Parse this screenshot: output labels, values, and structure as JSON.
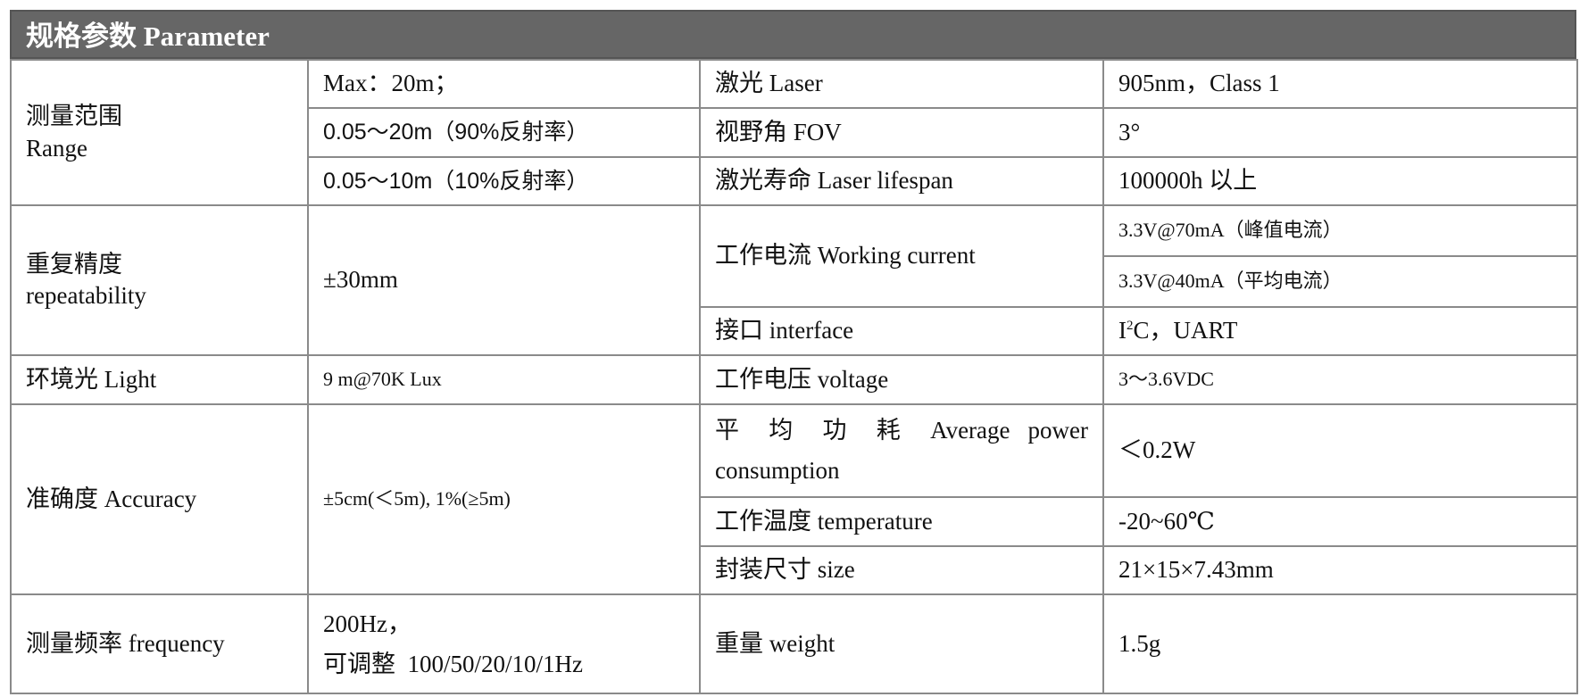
{
  "title": "规格参数 Parameter",
  "rows": {
    "range_label": "测量范围",
    "range_label_en": "Range",
    "range_max": "Max：20m；",
    "range_90": "0.05～20m（90%反射率）",
    "range_10": "0.05～10m（10%反射率）",
    "laser_label": "激光 Laser",
    "laser_value": "905nm，Class 1",
    "fov_label": "视野角 FOV",
    "fov_value": "3°",
    "lifespan_label": "激光寿命 Laser lifespan",
    "lifespan_value": "100000h 以上",
    "repeat_label": "重复精度",
    "repeat_label_en": "repeatability",
    "repeat_value": "±30mm",
    "current_label": "工作电流 Working current",
    "current_peak": "3.3V@70mA（峰值电流）",
    "current_avg": "3.3V@40mA（平均电流）",
    "interface_label": "接口 interface",
    "interface_value_pre": "I",
    "interface_value_sup": "2",
    "interface_value_post": "C，UART",
    "light_label": "环境光 Light",
    "light_value": "9 m@70K Lux",
    "voltage_label": "工作电压 voltage",
    "voltage_value": "3～3.6VDC",
    "accuracy_label": "准确度 Accuracy",
    "accuracy_value": "±5cm(＜5m), 1%(≥5m)",
    "power_label": "平 均 功 耗 Average power consumption",
    "power_value": "＜0.2W",
    "temp_label": "工作温度 temperature",
    "temp_value": "-20~60℃",
    "size_label": "封装尺寸 size",
    "size_value": "21×15×7.43mm",
    "freq_label": "测量频率 frequency",
    "freq_value_1": "200Hz，",
    "freq_value_2": "可调整  100/50/20/10/1Hz",
    "weight_label": "重量 weight",
    "weight_value": "1.5g"
  }
}
